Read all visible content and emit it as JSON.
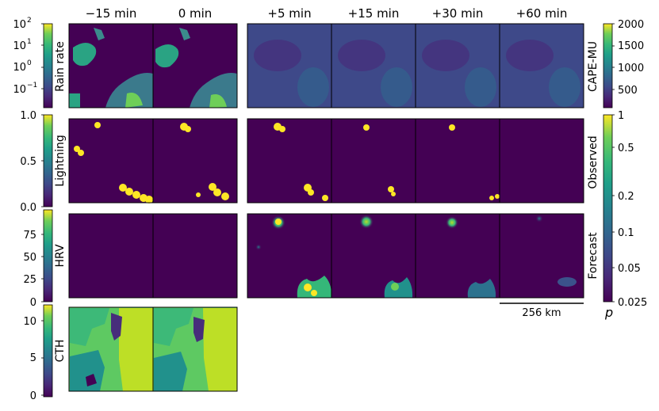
{
  "columns": [
    "−15 min",
    "0 min",
    "+5 min",
    "+15 min",
    "+30 min",
    "+60 min"
  ],
  "left_colorbars": [
    {
      "label": "Rain rate",
      "ticks": [
        "10",
        "10",
        "10",
        "10"
      ],
      "exponents": [
        "2",
        "1",
        "0",
        "−1"
      ]
    },
    {
      "label": "Lightning",
      "ticks": [
        "1.0",
        "0.5",
        "0.0"
      ]
    },
    {
      "label": "HRV",
      "ticks": [
        "75",
        "50",
        "25",
        "0"
      ]
    },
    {
      "label": "CTH",
      "ticks": [
        "10",
        "5",
        "0"
      ]
    }
  ],
  "right_colorbars": [
    {
      "label": "CAPE-MU",
      "ticks": [
        "2000",
        "1500",
        "1000",
        "500"
      ]
    },
    {
      "labels": [
        "Observed",
        "Forecast"
      ],
      "ticks": [
        "1",
        "0.5",
        "0.2",
        "0.1",
        "0.05",
        "0.025"
      ],
      "unit": "p"
    }
  ],
  "scale_bar": "256 km",
  "colors": {
    "viridis_dark": "#440154",
    "viridis_blue": "#3b528b",
    "viridis_teal": "#21918c",
    "viridis_green": "#5ec962",
    "viridis_yellow": "#fde725",
    "cth_yellow": "#bddf26"
  }
}
